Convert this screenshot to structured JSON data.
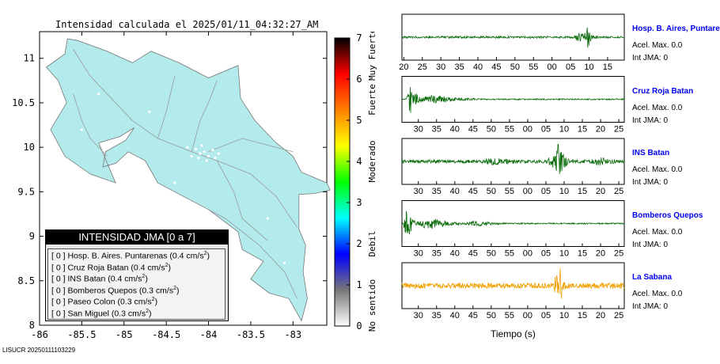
{
  "title": "Intensidad calculada el 2025/01/11_04:32:27_AM",
  "footer_id": "LISUCR 20250111103229",
  "colors": {
    "land": "#b3ebec",
    "roads": "#999999",
    "trace_green": "#0a6b0a",
    "trace_orange": "#f0a000",
    "station_blue": "#0000ee"
  },
  "chart_data": [
    {
      "type": "heatmap",
      "subtype": "map",
      "title": "Intensidad calculada el 2025/01/11_04:32:27_AM",
      "x_ticks": [
        "-86",
        "-85.5",
        "-85",
        "-84.5",
        "-84",
        "-83.5",
        "-83"
      ],
      "y_ticks": [
        "8",
        "8.5",
        "9",
        "9.5",
        "10",
        "10.5",
        "11"
      ],
      "xlim": [
        -86,
        -82.6
      ],
      "ylim": [
        8,
        11.3
      ],
      "legend": {
        "title": "INTENSIDAD JMA [0 a 7]",
        "placement": "bottom-left",
        "entries": [
          {
            "level": "[ 0 ]",
            "station": "Hosp. B. Aires. Puntarenas",
            "accel": "(0.4 cm/s",
            "exp": "2",
            "close": ")"
          },
          {
            "level": "[ 0 ]",
            "station": "Cruz Roja Batan",
            "accel": "(0.4 cm/s",
            "exp": "2",
            "close": ")"
          },
          {
            "level": "[ 0 ]",
            "station": "INS Batan",
            "accel": "(0.4 cm/s",
            "exp": "2",
            "close": ")"
          },
          {
            "level": "[ 0 ]",
            "station": "Bomberos Quepos",
            "accel": "(0.3 cm/s",
            "exp": "2",
            "close": ")"
          },
          {
            "level": "[ 0 ]",
            "station": "Paseo Colon",
            "accel": "(0.3 cm/s",
            "exp": "2",
            "close": ")"
          },
          {
            "level": "[ 0 ]",
            "station": "San Miguel",
            "accel": "(0.3 cm/s",
            "exp": "2",
            "close": ")"
          }
        ]
      }
    },
    {
      "type": "heatmap",
      "subtype": "colorbar",
      "range": [
        0,
        7
      ],
      "ticks": [
        "0",
        "1",
        "2",
        "3",
        "4",
        "5",
        "6",
        "7"
      ],
      "categories": [
        "No sentido",
        "Debil",
        "Moderado",
        "Fuerte",
        "Muy Fuerte"
      ],
      "category_centers": [
        0.5,
        2,
        4,
        5.5,
        6.6
      ],
      "color_stops": [
        "#ffffff",
        "#777777",
        "#0000ff",
        "#00ffff",
        "#00ff00",
        "#ffff00",
        "#ff8000",
        "#ff0000",
        "#000000"
      ]
    },
    {
      "type": "line",
      "subtype": "seismograms",
      "xlabel": "Tiempo (s)",
      "series": [
        {
          "name": "Hosp. B. Aires, Puntare",
          "ticks": [
            "20",
            "25",
            "30",
            "35",
            "40",
            "45",
            "50",
            "55",
            "00",
            "05",
            "10",
            "15"
          ],
          "tick_start": 20,
          "tick_step": 5,
          "axis_start": 19.5,
          "axis_end": 79.5,
          "color": "green",
          "accel": "Acel. Max. 0.0",
          "jma": "Int JMA: 0",
          "noise": 0.05,
          "bursts": [
            {
              "t": 68,
              "a": 0.28,
              "w": 3
            },
            {
              "t": 69.5,
              "a": 0.9,
              "w": 0.6
            }
          ]
        },
        {
          "name": "Cruz Roja Batan",
          "ticks": [
            "30",
            "35",
            "40",
            "45",
            "50",
            "55",
            "00",
            "05",
            "10",
            "15",
            "20",
            "25"
          ],
          "tick_start": 30,
          "tick_step": 5,
          "axis_start": 25.5,
          "axis_end": 86.5,
          "color": "green",
          "accel": "Acel. Max. 0.0",
          "jma": "Int JMA: 0",
          "noise": 0.03,
          "bursts": [
            {
              "t": 28,
              "a": 0.75,
              "w": 1.5
            },
            {
              "t": 34,
              "a": 0.22,
              "w": 7
            }
          ]
        },
        {
          "name": "INS Batan",
          "ticks": [
            "30",
            "35",
            "40",
            "45",
            "50",
            "55",
            "00",
            "05",
            "10",
            "15",
            "20",
            "25"
          ],
          "tick_start": 30,
          "tick_step": 5,
          "axis_start": 25.5,
          "axis_end": 86.5,
          "color": "green",
          "accel": "Acel. Max. 0.0",
          "jma": "Int JMA: 0",
          "noise": 0.08,
          "bursts": [
            {
              "t": 51,
              "a": 0.18,
              "w": 8
            },
            {
              "t": 67,
              "a": 0.35,
              "w": 3
            },
            {
              "t": 68.5,
              "a": 0.95,
              "w": 1.5
            },
            {
              "t": 80,
              "a": 0.2,
              "w": 6
            }
          ]
        },
        {
          "name": "Bomberos Quepos",
          "ticks": [
            "30",
            "35",
            "40",
            "45",
            "50",
            "55",
            "00",
            "05",
            "10",
            "15",
            "20",
            "25"
          ],
          "tick_start": 30,
          "tick_step": 5,
          "axis_start": 25.5,
          "axis_end": 86.5,
          "color": "green",
          "accel": "Acel. Max. 0.0",
          "jma": "Int JMA: 0",
          "noise": 0.03,
          "bursts": [
            {
              "t": 27,
              "a": 0.85,
              "w": 1.5
            },
            {
              "t": 33,
              "a": 0.3,
              "w": 5
            },
            {
              "t": 46,
              "a": 0.15,
              "w": 5
            }
          ]
        },
        {
          "name": "La Sabana",
          "ticks": [
            "30",
            "35",
            "40",
            "45",
            "50",
            "55",
            "00",
            "05",
            "10",
            "15",
            "20",
            "25"
          ],
          "tick_start": 30,
          "tick_step": 5,
          "axis_start": 25.5,
          "axis_end": 86.5,
          "color": "orange",
          "accel": "Acel. Max. 0.0",
          "jma": "Int JMA: 0",
          "noise": 0.13,
          "bursts": [
            {
              "t": 68,
              "a": 0.5,
              "w": 2
            },
            {
              "t": 69,
              "a": 0.95,
              "w": 0.7
            }
          ]
        }
      ]
    }
  ]
}
